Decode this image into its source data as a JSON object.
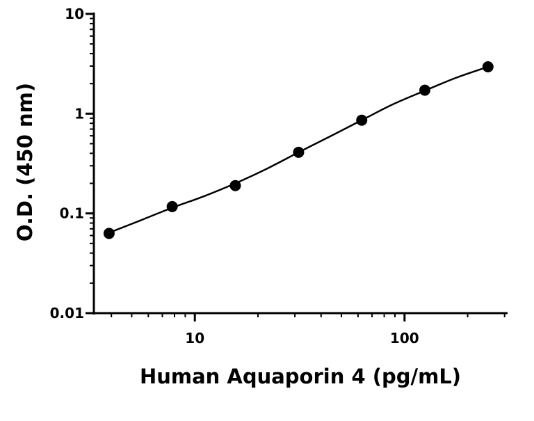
{
  "chart_data": {
    "type": "scatter",
    "title": "",
    "xlabel": "Human Aquaporin 4 (pg/mL)",
    "ylabel": "O.D. (450 nm)",
    "x_scale": "log",
    "y_scale": "log",
    "xlim": [
      3.3,
      310
    ],
    "ylim": [
      0.01,
      10
    ],
    "x_ticks": [
      10,
      100
    ],
    "x_tick_labels": [
      "10",
      "100"
    ],
    "y_ticks": [
      0.01,
      0.1,
      1,
      10
    ],
    "y_tick_labels": [
      "0.01",
      "0.1",
      "1",
      "10"
    ],
    "grid": false,
    "legend": "none",
    "series": [
      {
        "x": [
          3.9,
          7.8,
          15.6,
          31.25,
          62.5,
          125,
          250
        ],
        "y": [
          0.063,
          0.117,
          0.19,
          0.41,
          0.86,
          1.72,
          2.95
        ]
      }
    ],
    "fit_curve": {
      "x": [
        3.9,
        5.5,
        7.8,
        11,
        15.6,
        22,
        31.25,
        44,
        62.5,
        88,
        125,
        177,
        250
      ],
      "y": [
        0.064,
        0.085,
        0.114,
        0.148,
        0.2,
        0.28,
        0.41,
        0.59,
        0.86,
        1.24,
        1.7,
        2.3,
        2.95
      ]
    },
    "colors": {
      "points": "#000000",
      "line": "#000000",
      "axes": "#000000"
    }
  }
}
